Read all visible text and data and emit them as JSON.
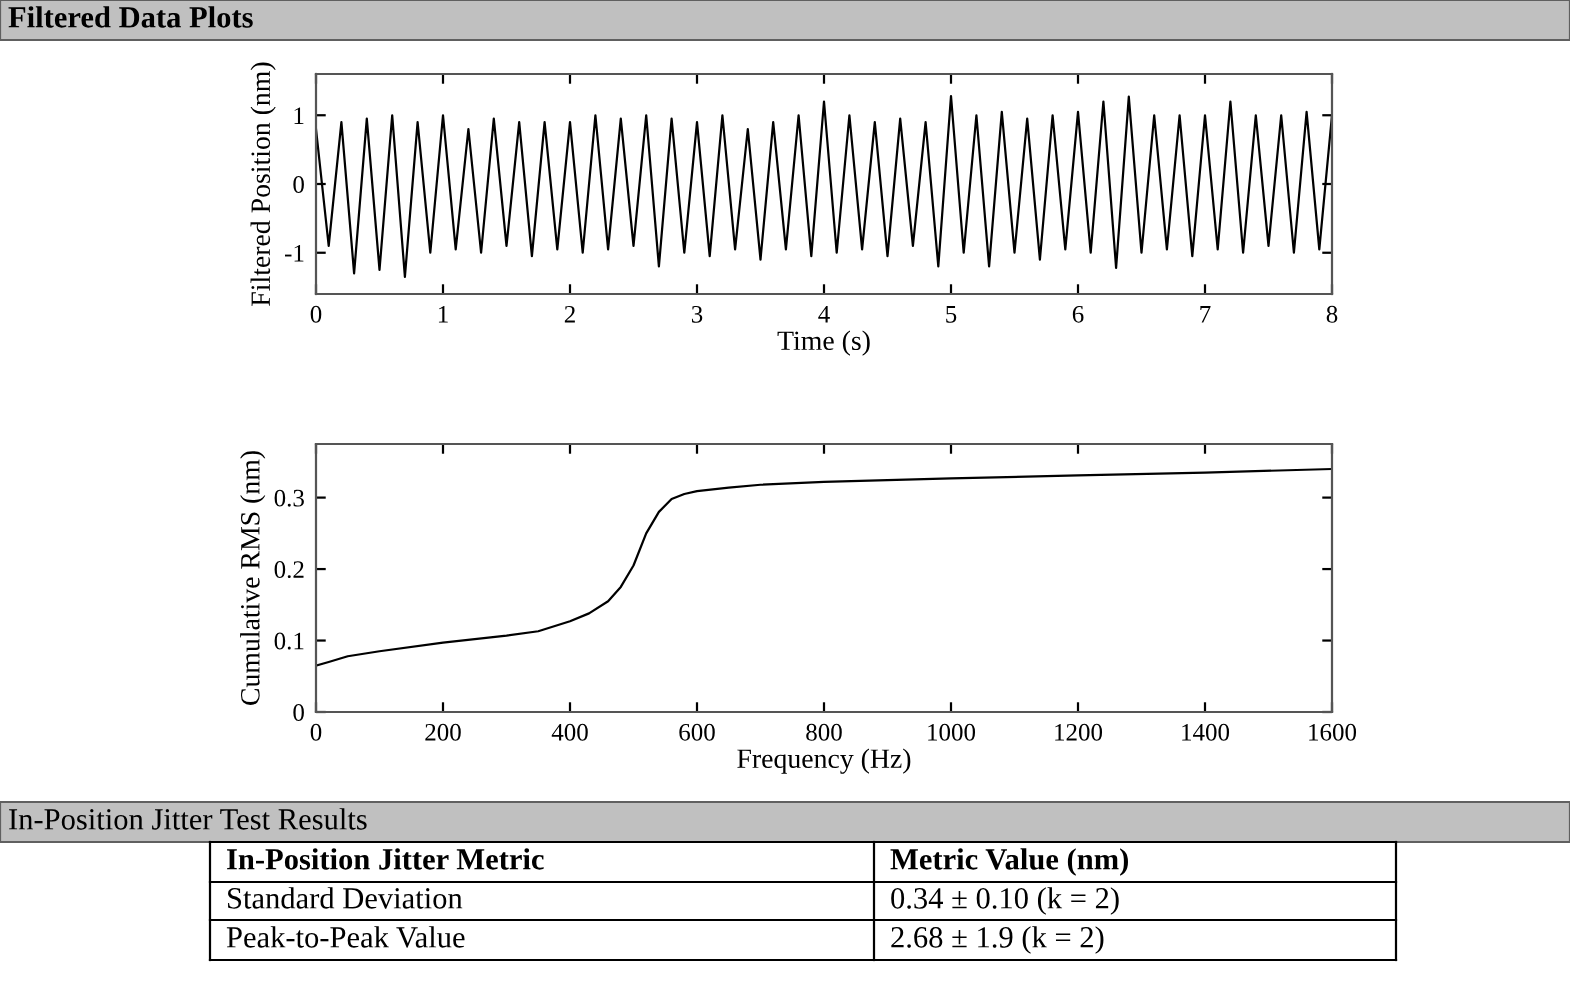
{
  "chart_data": [
    {
      "type": "line",
      "title": "Filtered Data Plots",
      "xlabel": "Time (s)",
      "ylabel": "Filtered Position (nm)",
      "xlim": [
        0,
        8
      ],
      "xticks": [
        0,
        1,
        2,
        3,
        4,
        5,
        6,
        7,
        8
      ],
      "ylim": [
        -1.6,
        1.6
      ],
      "yticks": [
        -1,
        0,
        1
      ],
      "grid": false,
      "x": [
        0.0,
        0.1,
        0.2,
        0.3,
        0.4,
        0.5,
        0.6,
        0.7,
        0.8,
        0.9,
        1.0,
        1.1,
        1.2,
        1.3,
        1.4,
        1.5,
        1.6,
        1.7,
        1.8,
        1.9,
        2.0,
        2.1,
        2.2,
        2.3,
        2.4,
        2.5,
        2.6,
        2.7,
        2.8,
        2.9,
        3.0,
        3.1,
        3.2,
        3.3,
        3.4,
        3.5,
        3.6,
        3.7,
        3.8,
        3.9,
        4.0,
        4.1,
        4.2,
        4.3,
        4.4,
        4.5,
        4.6,
        4.7,
        4.8,
        4.9,
        5.0,
        5.1,
        5.2,
        5.3,
        5.4,
        5.5,
        5.6,
        5.7,
        5.8,
        5.9,
        6.0,
        6.1,
        6.2,
        6.3,
        6.4,
        6.5,
        6.6,
        6.7,
        6.8,
        6.9,
        7.0,
        7.1,
        7.2,
        7.3,
        7.4,
        7.5,
        7.6,
        7.7,
        7.8,
        7.9,
        8.0
      ],
      "series": [
        {
          "color": "#000000",
          "values": [
            0.8,
            -0.9,
            0.9,
            -1.3,
            0.95,
            -1.25,
            1.0,
            -1.35,
            0.9,
            -1.0,
            1.0,
            -0.95,
            0.8,
            -1.0,
            0.95,
            -0.9,
            0.9,
            -1.05,
            0.9,
            -0.95,
            0.9,
            -1.0,
            1.0,
            -0.95,
            0.95,
            -0.9,
            1.0,
            -1.2,
            0.95,
            -1.0,
            0.9,
            -1.05,
            1.0,
            -0.95,
            0.8,
            -1.1,
            0.9,
            -0.95,
            1.0,
            -1.05,
            1.2,
            -1.0,
            1.0,
            -0.95,
            0.9,
            -1.05,
            0.95,
            -0.9,
            0.9,
            -1.2,
            1.28,
            -1.0,
            1.0,
            -1.2,
            1.05,
            -1.0,
            0.95,
            -1.1,
            1.0,
            -0.95,
            1.05,
            -1.0,
            1.2,
            -1.22,
            1.27,
            -1.0,
            1.0,
            -0.95,
            1.0,
            -1.05,
            1.0,
            -0.95,
            1.2,
            -1.0,
            1.0,
            -0.9,
            1.0,
            -1.0,
            1.05,
            -0.95,
            1.0
          ]
        }
      ]
    },
    {
      "type": "line",
      "xlabel": "Frequency (Hz)",
      "ylabel": "Cumulative RMS (nm)",
      "xlim": [
        0,
        1600
      ],
      "xticks": [
        0,
        200,
        400,
        600,
        800,
        1000,
        1200,
        1400,
        1600
      ],
      "ylim": [
        0,
        0.375
      ],
      "yticks": [
        0,
        0.1,
        0.2,
        0.3
      ],
      "grid": false,
      "x": [
        0,
        20,
        50,
        100,
        200,
        300,
        350,
        400,
        430,
        460,
        480,
        500,
        520,
        540,
        560,
        580,
        600,
        650,
        700,
        800,
        1000,
        1200,
        1400,
        1600
      ],
      "series": [
        {
          "color": "#000000",
          "values": [
            0.065,
            0.07,
            0.078,
            0.085,
            0.097,
            0.107,
            0.113,
            0.127,
            0.138,
            0.155,
            0.175,
            0.205,
            0.25,
            0.28,
            0.298,
            0.305,
            0.309,
            0.314,
            0.318,
            0.322,
            0.327,
            0.331,
            0.335,
            0.34
          ]
        }
      ],
      "annotations": [
        "In-Position Jitter Test Results",
        "In-Position Jitter Metric",
        "Metric Value (nm)",
        "Standard Deviation",
        "0.34 ± 0.10 (k = 2)",
        "Peak-to-Peak Value",
        "2.68 ± 1.9 (k = 2)"
      ]
    }
  ]
}
